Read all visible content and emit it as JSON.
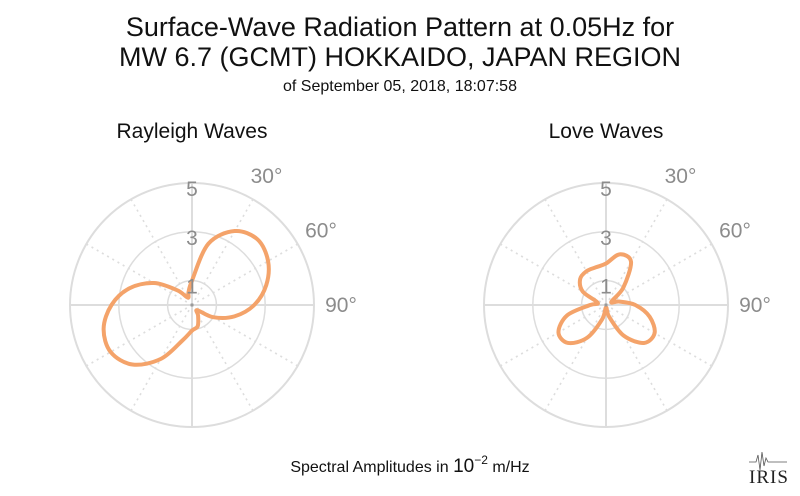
{
  "title_line1": "Surface-Wave Radiation Pattern at 0.05Hz for",
  "title_line2": "MW 6.7 (GCMT) HOKKAIDO, JAPAN REGION",
  "subtitle": "of September 05, 2018, 18:07:58",
  "footer": {
    "prefix": "Spectral Amplitudes in ",
    "base": "10",
    "exponent": "−2",
    "suffix": " m/Hz"
  },
  "logo_text": "IRIS",
  "colors": {
    "pattern": "#f4a36a",
    "grid": "#dddddd",
    "tick_text": "#8c8c8c"
  },
  "chart_data": [
    {
      "type": "polar-line",
      "title": "Rayleigh Waves",
      "radial_tick_labels": [
        "1",
        "3",
        "5"
      ],
      "radial_ticks": [
        1,
        3,
        5
      ],
      "radial_max": 5,
      "angle_tick_labels": [
        "30°",
        "60°",
        "90°"
      ],
      "angle_ticks": [
        30,
        60,
        90
      ],
      "angle_grid_step": 30,
      "azimuth_deg": [
        0,
        15,
        30,
        45,
        60,
        75,
        90,
        105,
        120,
        135,
        150,
        165,
        180,
        195,
        210,
        225,
        240,
        255,
        270,
        285,
        300,
        315,
        330,
        345
      ],
      "amplitude": [
        1.0,
        2.6,
        3.5,
        3.8,
        3.6,
        3.15,
        2.55,
        1.8,
        1.0,
        0.3,
        0.5,
        0.9,
        1.05,
        1.5,
        2.55,
        3.45,
        3.85,
        3.75,
        3.3,
        2.65,
        1.8,
        0.85,
        0.35,
        0.55
      ]
    },
    {
      "type": "polar-line",
      "title": "Love Waves",
      "radial_tick_labels": [
        "1",
        "3",
        "5"
      ],
      "radial_ticks": [
        1,
        3,
        5
      ],
      "radial_max": 5,
      "angle_tick_labels": [
        "30°",
        "60°",
        "90°"
      ],
      "angle_ticks": [
        30,
        60,
        90
      ],
      "angle_grid_step": 30,
      "azimuth_deg": [
        0,
        15,
        30,
        45,
        60,
        75,
        90,
        105,
        120,
        135,
        150,
        165,
        180,
        195,
        210,
        225,
        240,
        255,
        270,
        285,
        300,
        315,
        330,
        345
      ],
      "amplitude": [
        1.7,
        2.15,
        2.05,
        1.0,
        0.25,
        0.55,
        1.2,
        1.85,
        2.3,
        2.2,
        1.45,
        0.5,
        0.1,
        0.6,
        1.55,
        2.2,
        2.25,
        1.65,
        0.65,
        0.35,
        1.1,
        1.5,
        1.6,
        1.6
      ]
    }
  ]
}
